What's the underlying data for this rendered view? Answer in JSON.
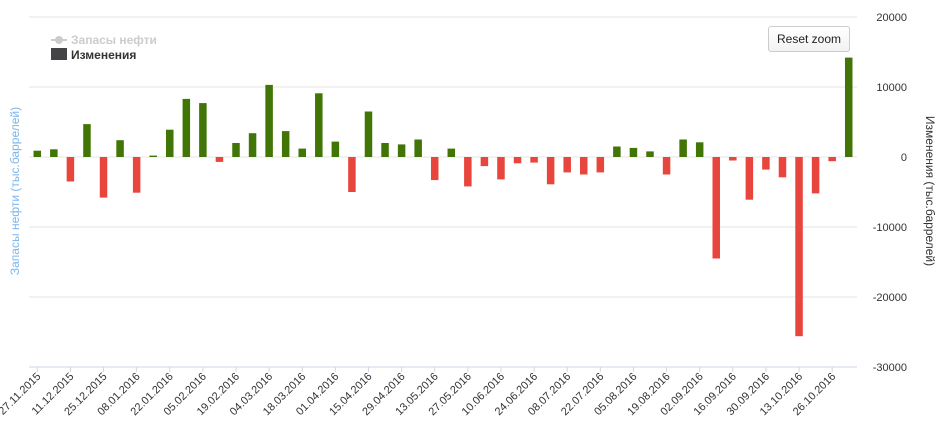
{
  "chart_data": {
    "type": "bar",
    "legend": {
      "items": [
        {
          "name": "Запасы нефти",
          "type": "line",
          "hidden": true,
          "color": "#cccccc"
        },
        {
          "name": "Изменения",
          "type": "bar",
          "hidden": false,
          "color": "#434348"
        }
      ],
      "placement": "top-left"
    },
    "left_axis_title": "Запасы нефти (тыс.баррелей)",
    "right_axis_title": "Изменения (тыс.баррелей)",
    "yticks": [
      20000,
      10000,
      0,
      -10000,
      -20000,
      -30000
    ],
    "ylim": [
      -30000,
      20000
    ],
    "grid": true,
    "colors": {
      "positive": "#417505",
      "negative": "#e8453c",
      "grid": "#e6e6e6",
      "left_title": "#7cb5ec"
    },
    "xtick_labels": [
      "27.11.2015",
      "11.12.2015",
      "25.12.2015",
      "08.01.2016",
      "22.01.2016",
      "05.02.2016",
      "19.02.2016",
      "04.03.2016",
      "18.03.2016",
      "01.04.2016",
      "15.04.2016",
      "29.04.2016",
      "13.05.2016",
      "27.05.2016",
      "10.06.2016",
      "24.06.2016",
      "08.07.2016",
      "22.07.2016",
      "05.08.2016",
      "19.08.2016",
      "02.09.2016",
      "16.09.2016",
      "30.09.2016",
      "13.10.2016",
      "26.10.2016"
    ],
    "series": [
      {
        "name": "Изменения",
        "values": [
          900,
          1100,
          -3500,
          4700,
          -5800,
          2400,
          -5100,
          200,
          3900,
          8300,
          7700,
          -700,
          2000,
          3400,
          10300,
          3700,
          1200,
          9100,
          2200,
          -5000,
          6500,
          2000,
          1800,
          2500,
          -3300,
          1200,
          -4200,
          -1300,
          -3200,
          -900,
          -800,
          -3900,
          -2200,
          -2500,
          -2200,
          1500,
          1300,
          800,
          -2500,
          2500,
          2100,
          -14500,
          -500,
          -6100,
          -1800,
          -2900,
          -25600,
          -5200,
          -600,
          14200
        ]
      }
    ]
  },
  "reset_zoom_label": "Reset zoom"
}
